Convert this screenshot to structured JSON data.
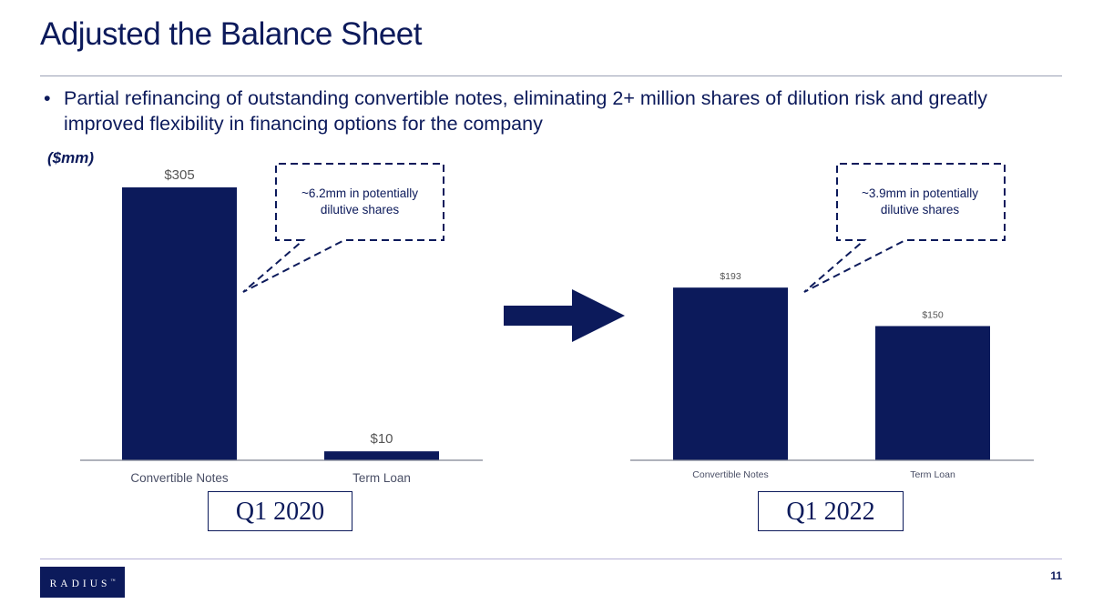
{
  "slide": {
    "title": "Adjusted the Balance Sheet",
    "bullet": "Partial refinancing of outstanding convertible notes, eliminating 2+ million shares of dilution risk and greatly improved flexibility in financing options for the company",
    "unit_label": "($mm)",
    "logo_text": "RADIUS",
    "logo_mark": "™",
    "page_number": "11"
  },
  "colors": {
    "bar": "#0c1a5b",
    "text": "#0c1a5b",
    "axis": "#7f8392",
    "arrow": "#0c1a5b"
  },
  "chart_data": [
    {
      "type": "bar",
      "period": "Q1 2020",
      "categories": [
        "Convertible Notes",
        "Term Loan"
      ],
      "values": [
        305,
        10
      ],
      "data_labels": [
        "$305",
        "$10"
      ],
      "callout": "~6.2mm in potentially dilutive shares",
      "ylim": [
        0,
        305
      ]
    },
    {
      "type": "bar",
      "period": "Q1 2022",
      "categories": [
        "Convertible Notes",
        "Term Loan"
      ],
      "values": [
        193,
        150
      ],
      "data_labels": [
        "$193",
        "$150"
      ],
      "callout": "~3.9mm in potentially dilutive shares",
      "ylim": [
        0,
        305
      ]
    }
  ]
}
